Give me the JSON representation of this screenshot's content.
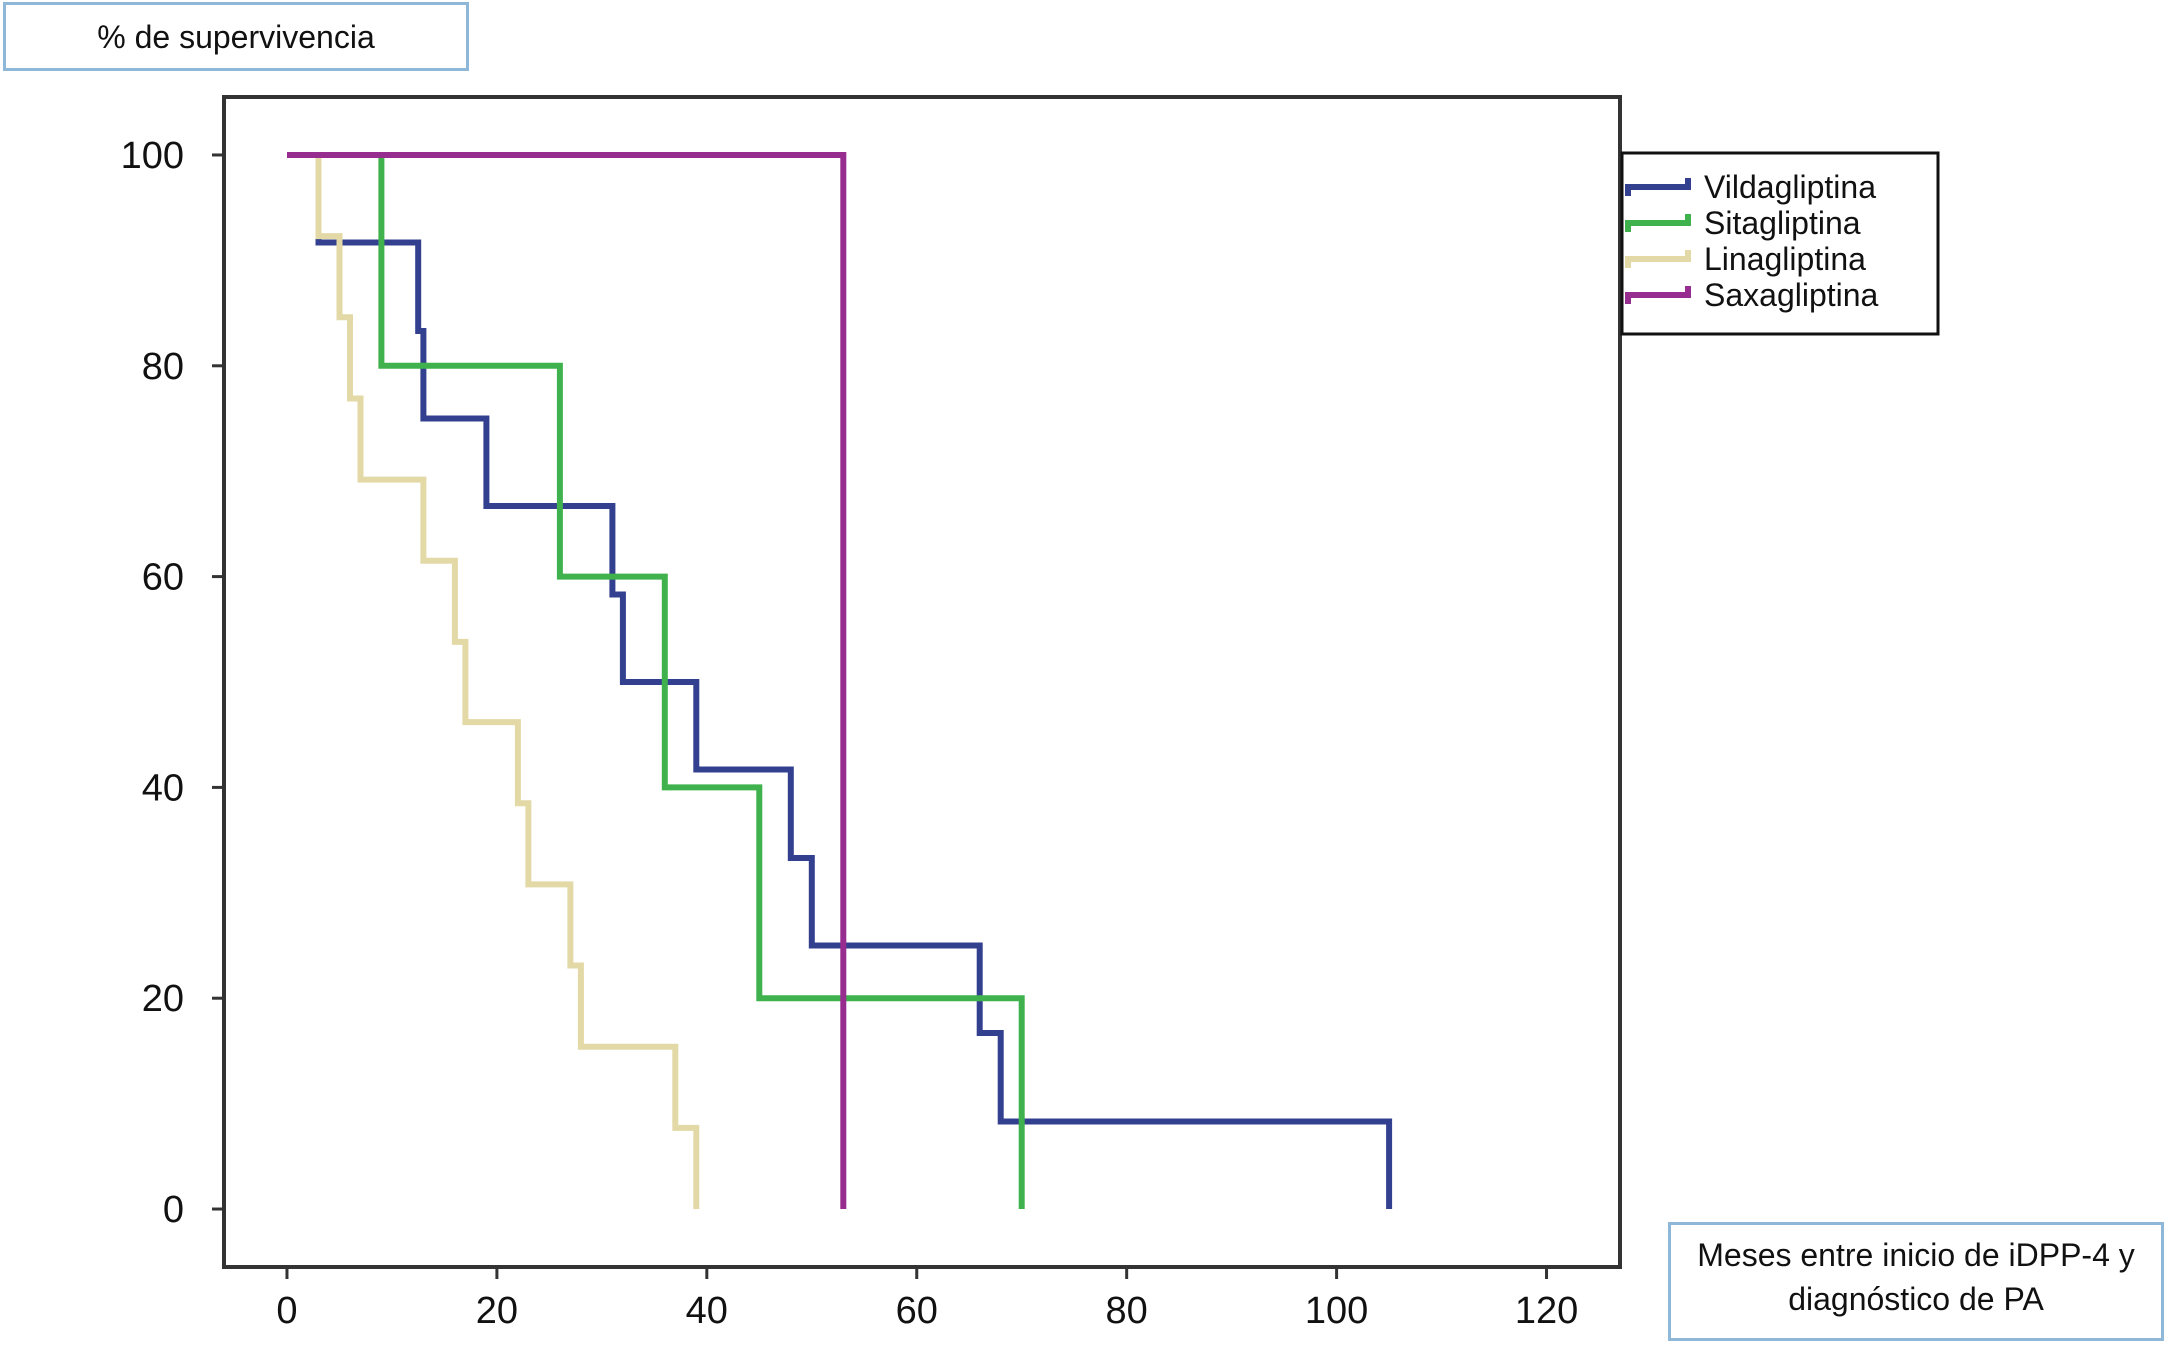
{
  "chart_data": {
    "type": "line",
    "step": true,
    "title": "",
    "ylabel": "% de supervivencia",
    "xlabel": "Meses entre inicio de iDPP-4 y diagnóstico de PA",
    "xlim": [
      -6,
      127
    ],
    "ylim": [
      -5.5,
      105.5
    ],
    "x_ticks": [
      0,
      20,
      40,
      60,
      80,
      100,
      120
    ],
    "y_ticks": [
      0,
      20,
      40,
      60,
      80,
      100
    ],
    "grid": false,
    "legend_position": "top-right",
    "series": [
      {
        "name": "Vildagliptina",
        "color": "#33408f",
        "points": [
          [
            3,
            100
          ],
          [
            3,
            91.7
          ],
          [
            12.5,
            91.7
          ],
          [
            12.5,
            83.3
          ],
          [
            13,
            83.3
          ],
          [
            13,
            75
          ],
          [
            19,
            75
          ],
          [
            19,
            66.7
          ],
          [
            31,
            66.7
          ],
          [
            31,
            58.3
          ],
          [
            32,
            58.3
          ],
          [
            32,
            50
          ],
          [
            39,
            50
          ],
          [
            39,
            41.7
          ],
          [
            48,
            41.7
          ],
          [
            48,
            33.3
          ],
          [
            50,
            33.3
          ],
          [
            50,
            25
          ],
          [
            66,
            25
          ],
          [
            66,
            16.7
          ],
          [
            68,
            16.7
          ],
          [
            68,
            8.3
          ],
          [
            105,
            8.3
          ],
          [
            105,
            0
          ]
        ]
      },
      {
        "name": "Sitagliptina",
        "color": "#3fb24e",
        "points": [
          [
            9,
            100
          ],
          [
            9,
            80
          ],
          [
            26,
            80
          ],
          [
            26,
            60
          ],
          [
            36,
            60
          ],
          [
            36,
            40
          ],
          [
            45,
            40
          ],
          [
            45,
            20
          ],
          [
            70,
            20
          ],
          [
            70,
            0
          ]
        ]
      },
      {
        "name": "Linagliptina",
        "color": "#e3d9a6",
        "points": [
          [
            0,
            100
          ],
          [
            3,
            100
          ],
          [
            3,
            92.3
          ],
          [
            5,
            92.3
          ],
          [
            5,
            84.6
          ],
          [
            6,
            84.6
          ],
          [
            6,
            76.9
          ],
          [
            7,
            76.9
          ],
          [
            7,
            69.2
          ],
          [
            13,
            69.2
          ],
          [
            13,
            61.5
          ],
          [
            16,
            61.5
          ],
          [
            16,
            53.8
          ],
          [
            17,
            53.8
          ],
          [
            17,
            46.2
          ],
          [
            22,
            46.2
          ],
          [
            22,
            38.5
          ],
          [
            23,
            38.5
          ],
          [
            23,
            30.8
          ],
          [
            27,
            30.8
          ],
          [
            27,
            23.1
          ],
          [
            28,
            23.1
          ],
          [
            28,
            15.4
          ],
          [
            37,
            15.4
          ],
          [
            37,
            7.7
          ],
          [
            39,
            7.7
          ],
          [
            39,
            0
          ]
        ]
      },
      {
        "name": "Saxagliptina",
        "color": "#962d8f",
        "points": [
          [
            0,
            100
          ],
          [
            53,
            100
          ],
          [
            53,
            0
          ]
        ]
      }
    ]
  }
}
